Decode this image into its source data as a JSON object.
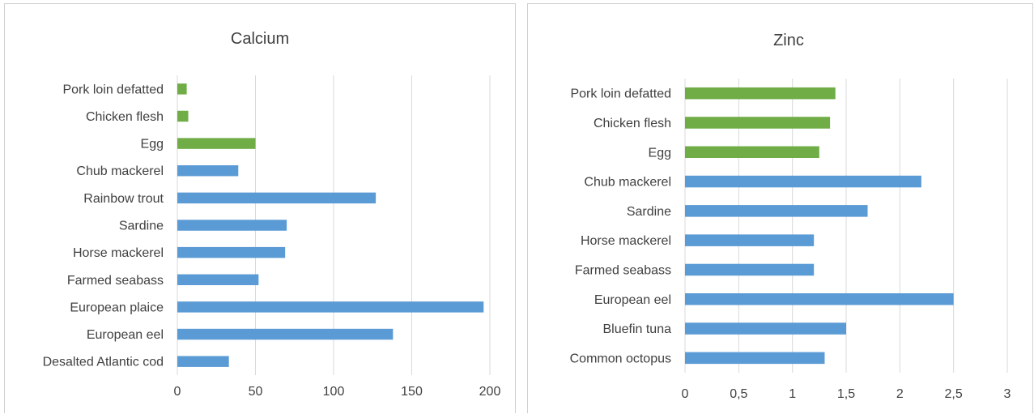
{
  "chart_data": [
    {
      "type": "bar",
      "orientation": "horizontal",
      "title": "Calcium",
      "xlabel": "",
      "ylabel": "",
      "xlim": [
        0,
        200
      ],
      "ticks": [
        "0",
        "50",
        "100",
        "150",
        "200"
      ],
      "tick_values": [
        0,
        50,
        100,
        150,
        200
      ],
      "grid": true,
      "categories": [
        "Pork loin defatted",
        "Chicken flesh",
        "Egg",
        "Chub mackerel",
        "Rainbow trout",
        "Sardine",
        "Horse mackerel",
        "Farmed seabass",
        "European plaice",
        "European eel",
        "Desalted Atlantic cod"
      ],
      "values": [
        6,
        7,
        50,
        39,
        127,
        70,
        69,
        52,
        196,
        138,
        33
      ],
      "bar_colors": [
        "#70ad47",
        "#70ad47",
        "#70ad47",
        "#5b9bd5",
        "#5b9bd5",
        "#5b9bd5",
        "#5b9bd5",
        "#5b9bd5",
        "#5b9bd5",
        "#5b9bd5",
        "#5b9bd5"
      ]
    },
    {
      "type": "bar",
      "orientation": "horizontal",
      "title": "Zinc",
      "xlabel": "",
      "ylabel": "",
      "xlim": [
        0,
        3
      ],
      "ticks": [
        "0",
        "0,5",
        "1",
        "1,5",
        "2",
        "2,5",
        "3"
      ],
      "tick_values": [
        0,
        0.5,
        1,
        1.5,
        2,
        2.5,
        3
      ],
      "grid": true,
      "categories": [
        "Pork loin defatted",
        "Chicken flesh",
        "Egg",
        "Chub mackerel",
        "Sardine",
        "Horse mackerel",
        "Farmed seabass",
        "European eel",
        "Bluefin tuna",
        "Common octopus"
      ],
      "values": [
        1.4,
        1.35,
        1.25,
        2.2,
        1.7,
        1.2,
        1.2,
        2.5,
        1.5,
        1.3
      ],
      "bar_colors": [
        "#70ad47",
        "#70ad47",
        "#70ad47",
        "#5b9bd5",
        "#5b9bd5",
        "#5b9bd5",
        "#5b9bd5",
        "#5b9bd5",
        "#5b9bd5",
        "#5b9bd5"
      ]
    }
  ]
}
